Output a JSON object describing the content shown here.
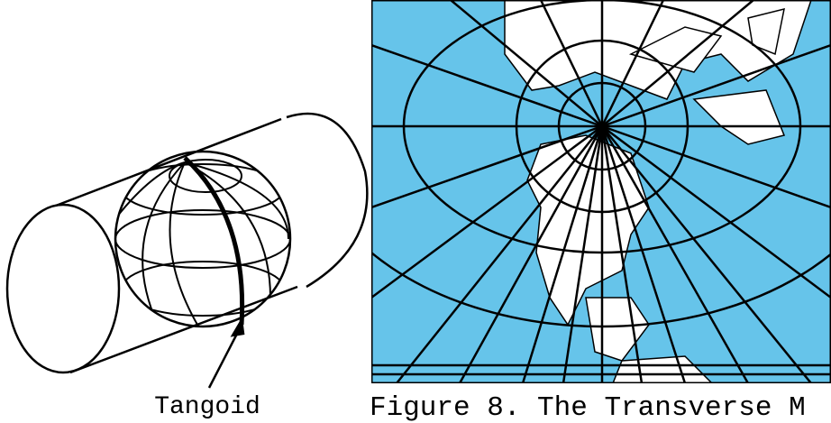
{
  "labels": {
    "tangoid": "Tangoid"
  },
  "caption": "Figure 8. The Transverse M"
}
